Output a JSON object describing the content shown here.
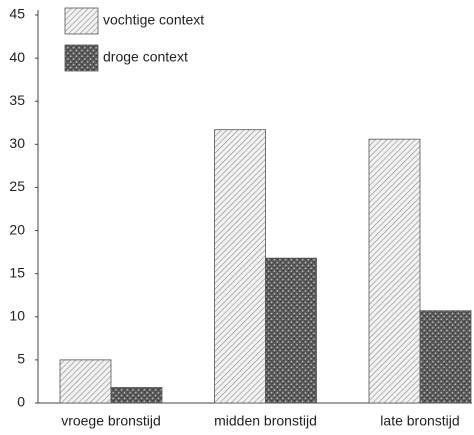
{
  "chart_data": {
    "type": "bar",
    "categories": [
      "vroege bronstijd",
      "midden bronstijd",
      "late bronstijd"
    ],
    "series": [
      {
        "name": "vochtige context",
        "color": "#d9d9d9",
        "values": [
          5,
          31.7,
          30.6
        ]
      },
      {
        "name": "droge context",
        "color": "#5a5a5a",
        "values": [
          1.8,
          16.8,
          10.7
        ]
      }
    ],
    "ylim": [
      0,
      45
    ],
    "yticks": [
      0,
      5,
      10,
      15,
      20,
      25,
      30,
      35,
      40,
      45
    ],
    "grid": false
  }
}
